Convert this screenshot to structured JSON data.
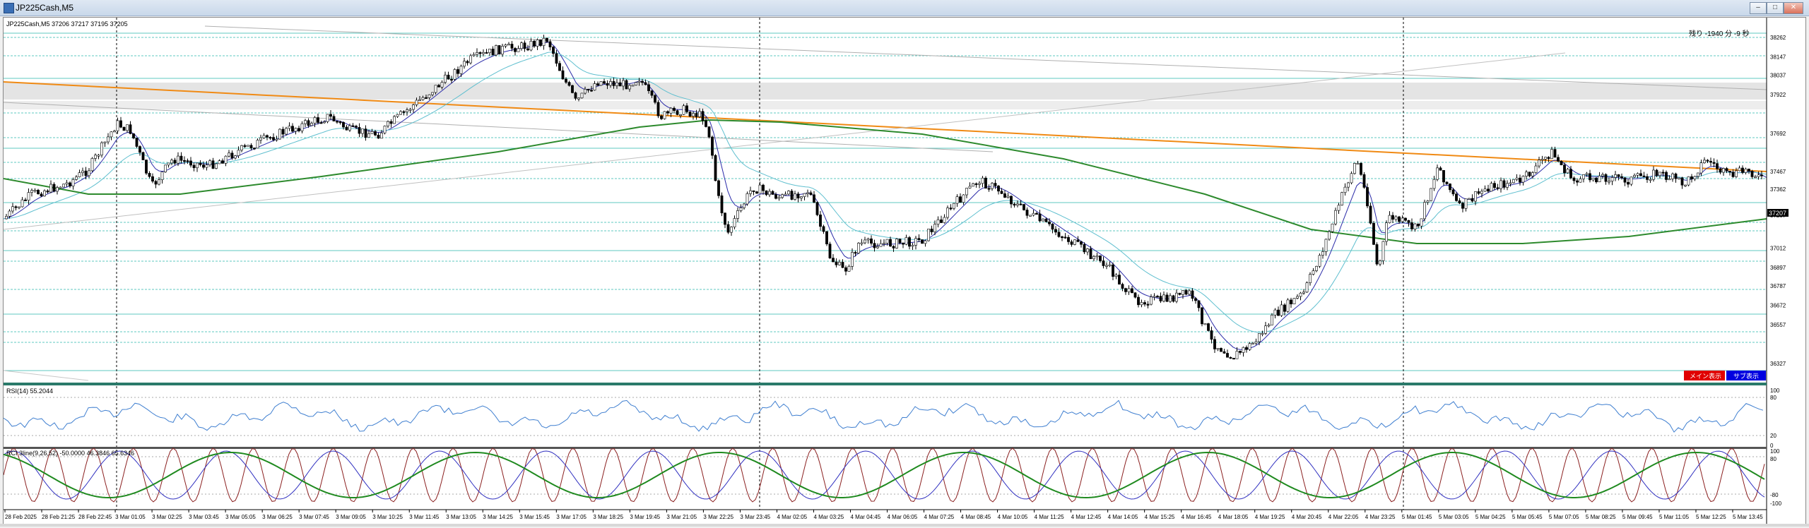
{
  "window": {
    "title": "JP225Cash,M5",
    "buttons": [
      "–",
      "□",
      "✕"
    ]
  },
  "main_chart": {
    "header": "JP225Cash,M5  37206 37217 37195 37205",
    "countdown": "残り -1940 分 -9 秒",
    "price_labels": [
      "38262",
      "38147",
      "38037",
      "37922",
      "37692",
      "37467",
      "37362",
      "37207",
      "37012",
      "36897",
      "36787",
      "36672",
      "36557",
      "36327"
    ],
    "current_price": "37207",
    "colors": {
      "up_candle": "#ffffff",
      "down_candle": "#000000",
      "ma_blue": "#2a2aa8",
      "ma_cyan": "#5fbfcf",
      "ma_green": "#2d8a2d",
      "trend_orange": "#f08a14",
      "hline_teal": "#5fc8c0",
      "red_btn": "#e00000",
      "blue_btn": "#0000e0"
    },
    "buttons": {
      "main": "メイン表示",
      "sub": "サブ表示"
    }
  },
  "rsi_panel": {
    "header": "RSI(14) 55.2044",
    "levels": [
      "100",
      "80",
      "20",
      "0"
    ]
  },
  "rci_panel": {
    "header": "RCI 3line(9,26,52) -50.0000 46.3846 65.6346",
    "levels": [
      "100",
      "80",
      "-80",
      "-100"
    ]
  },
  "time_axis": [
    "28 Feb 2025",
    "28 Feb 21:25",
    "28 Feb 22:45",
    "3 Mar 01:05",
    "3 Mar 02:25",
    "3 Mar 03:45",
    "3 Mar 05:05",
    "3 Mar 06:25",
    "3 Mar 07:45",
    "3 Mar 09:05",
    "3 Mar 10:25",
    "3 Mar 11:45",
    "3 Mar 13:05",
    "3 Mar 14:25",
    "3 Mar 15:45",
    "3 Mar 17:05",
    "3 Mar 18:25",
    "3 Mar 19:45",
    "3 Mar 21:05",
    "3 Mar 22:25",
    "3 Mar 23:45",
    "4 Mar 02:05",
    "4 Mar 03:25",
    "4 Mar 04:45",
    "4 Mar 06:05",
    "4 Mar 07:25",
    "4 Mar 08:45",
    "4 Mar 10:05",
    "4 Mar 11:25",
    "4 Mar 12:45",
    "4 Mar 14:05",
    "4 Mar 15:25",
    "4 Mar 16:45",
    "4 Mar 18:05",
    "4 Mar 19:25",
    "4 Mar 20:45",
    "4 Mar 22:05",
    "4 Mar 23:25",
    "5 Mar 01:45",
    "5 Mar 03:05",
    "5 Mar 04:25",
    "5 Mar 05:45",
    "5 Mar 07:05",
    "5 Mar 08:25",
    "5 Mar 09:45",
    "5 Mar 11:05",
    "5 Mar 12:25",
    "5 Mar 13:45"
  ]
}
